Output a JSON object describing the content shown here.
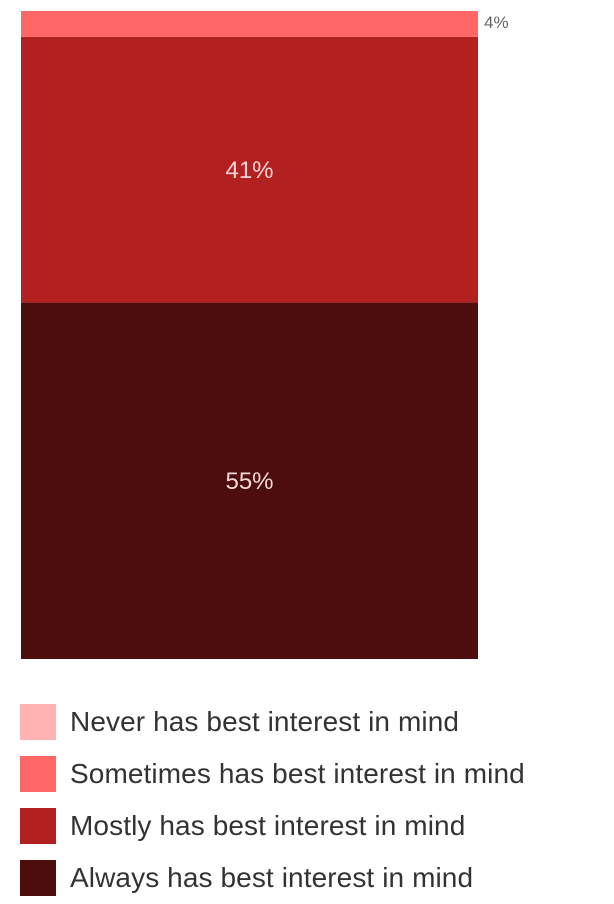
{
  "chart_data": {
    "type": "bar",
    "stacked": true,
    "categories": [
      ""
    ],
    "series": [
      {
        "name": "Never has best interest in mind",
        "values": [
          0
        ],
        "color": "#ffb3b3"
      },
      {
        "name": "Sometimes has best interest in mind",
        "values": [
          4
        ],
        "color": "#ff6666",
        "label": "4%"
      },
      {
        "name": "Mostly has best interest in mind",
        "values": [
          41
        ],
        "color": "#b22020",
        "label": "41%"
      },
      {
        "name": "Always has best interest in mind",
        "values": [
          55
        ],
        "color": "#4d0d0d",
        "label": "55%"
      }
    ],
    "ylim": [
      0,
      100
    ],
    "legend": "bottom",
    "grid": false
  }
}
